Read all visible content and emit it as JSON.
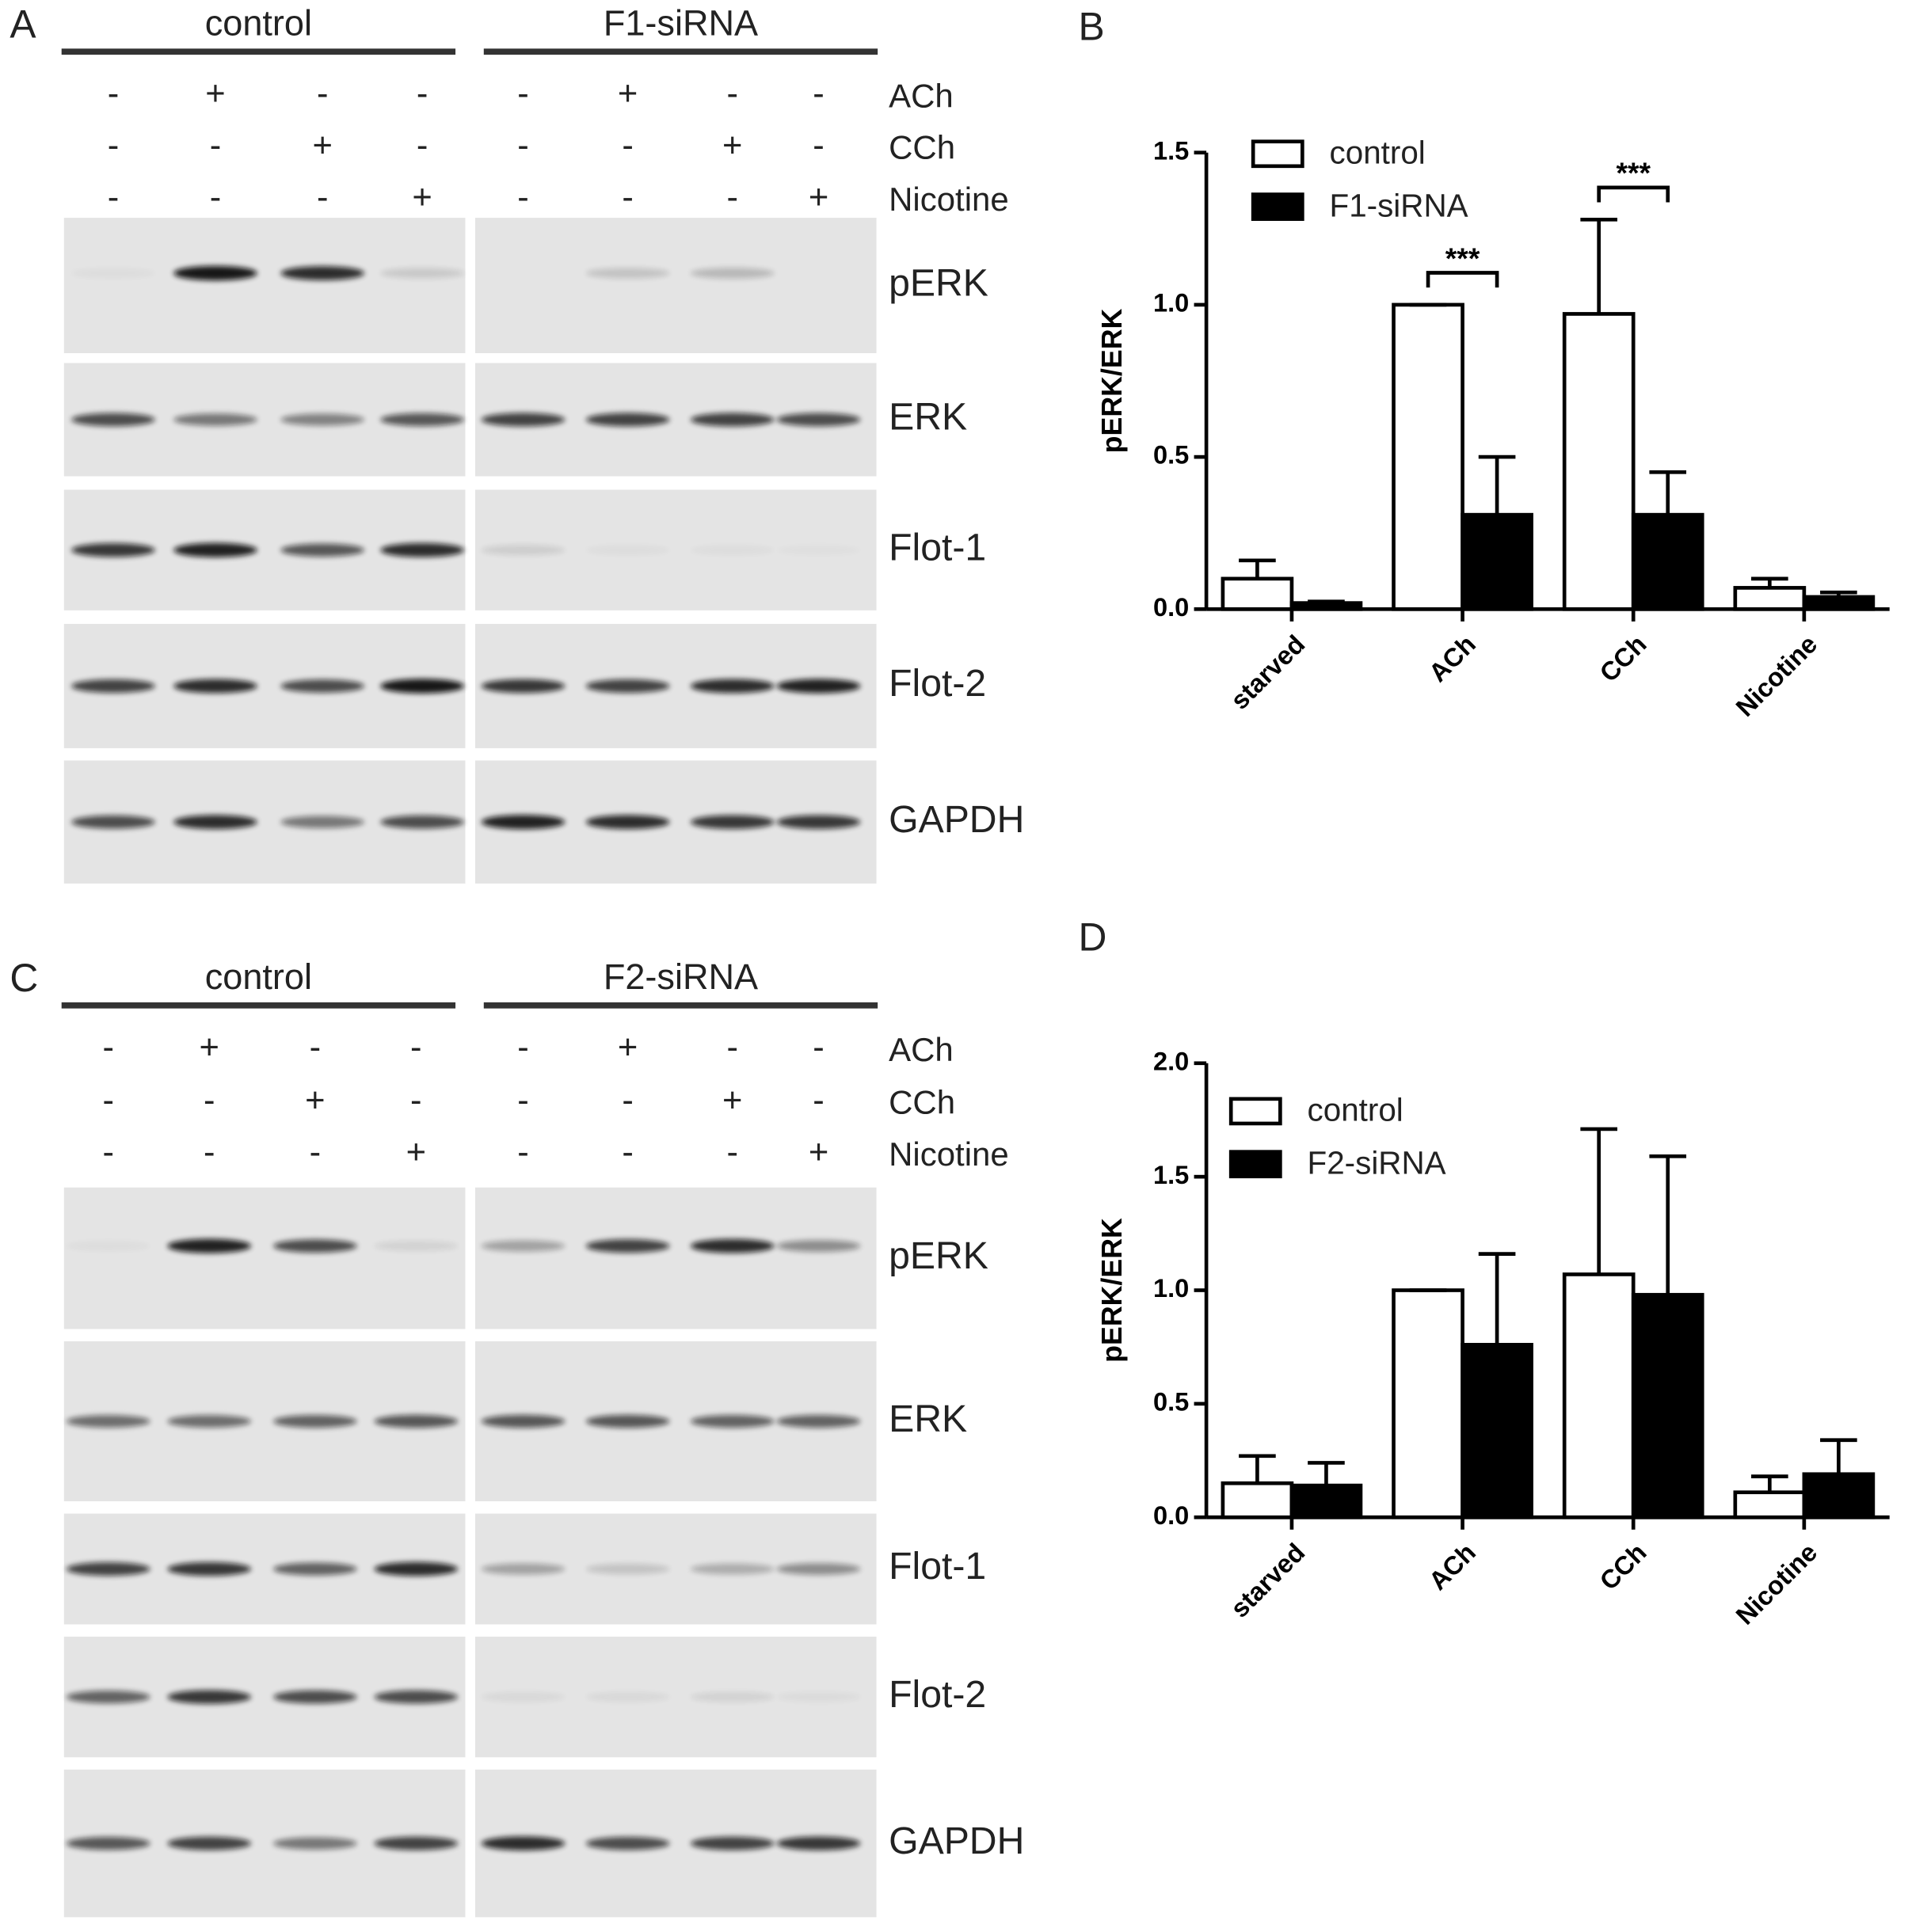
{
  "blots": [
    {
      "label": "A",
      "groups": [
        "control",
        "F1-siRNA"
      ],
      "treatments": [
        {
          "name": "ACh",
          "signs": [
            "-",
            "+",
            "-",
            "-",
            "-",
            "+",
            "-",
            "-"
          ]
        },
        {
          "name": "CCh",
          "signs": [
            "-",
            "-",
            "+",
            "-",
            "-",
            "-",
            "+",
            "-"
          ]
        },
        {
          "name": "Nicotine",
          "signs": [
            "-",
            "-",
            "-",
            "+",
            "-",
            "-",
            "-",
            "+"
          ]
        }
      ],
      "bands": [
        "pERK",
        "ERK",
        "Flot-1",
        "Flot-2",
        "GAPDH"
      ]
    },
    {
      "label": "C",
      "groups": [
        "control",
        "F2-siRNA"
      ],
      "treatments": [
        {
          "name": "ACh",
          "signs": [
            "-",
            "+",
            "-",
            "-",
            "-",
            "+",
            "-",
            "-"
          ]
        },
        {
          "name": "CCh",
          "signs": [
            "-",
            "-",
            "+",
            "-",
            "-",
            "-",
            "+",
            "-"
          ]
        },
        {
          "name": "Nicotine",
          "signs": [
            "-",
            "-",
            "-",
            "+",
            "-",
            "-",
            "-",
            "+"
          ]
        }
      ],
      "bands": [
        "pERK",
        "ERK",
        "Flot-1",
        "Flot-2",
        "GAPDH"
      ]
    }
  ],
  "chart_data": [
    {
      "type": "bar",
      "label": "B",
      "y_label": "pERK/ERK",
      "categories": [
        "starved",
        "ACh",
        "CCh",
        "Nicotine"
      ],
      "series": [
        {
          "name": "control",
          "color": "#ffffff",
          "values": [
            0.1,
            1.0,
            0.97,
            0.07
          ],
          "errors": [
            0.06,
            0,
            0.31,
            0.03
          ]
        },
        {
          "name": "F1-siRNA",
          "color": "#000000",
          "values": [
            0.02,
            0.31,
            0.31,
            0.04
          ],
          "errors": [
            0.005,
            0.19,
            0.14,
            0.015
          ]
        }
      ],
      "significance": [
        null,
        "***",
        "***",
        null
      ],
      "ylim": [
        0,
        1.5
      ],
      "yticks": [
        {
          "value": 0,
          "label": "0.0"
        },
        {
          "value": 0.5,
          "label": "0.5"
        },
        {
          "value": 1,
          "label": "1.0"
        },
        {
          "value": 1.5,
          "label": "1.5"
        }
      ]
    },
    {
      "type": "bar",
      "label": "D",
      "y_label": "pERK/ERK",
      "categories": [
        "starved",
        "ACh",
        "CCh",
        "Nicotine"
      ],
      "series": [
        {
          "name": "control",
          "color": "#ffffff",
          "values": [
            0.15,
            1.0,
            1.07,
            0.11
          ],
          "errors": [
            0.12,
            0,
            0.64,
            0.07
          ]
        },
        {
          "name": "F2-siRNA",
          "color": "#000000",
          "values": [
            0.14,
            0.76,
            0.98,
            0.19
          ],
          "errors": [
            0.1,
            0.4,
            0.61,
            0.15
          ]
        }
      ],
      "ylim": [
        0,
        2
      ],
      "yticks": [
        {
          "value": 0,
          "label": "0.0"
        },
        {
          "value": 0.5,
          "label": "0.5"
        },
        {
          "value": 1,
          "label": "1.0"
        },
        {
          "value": 1.5,
          "label": "1.5"
        },
        {
          "value": 2,
          "label": "2.0"
        }
      ]
    }
  ]
}
